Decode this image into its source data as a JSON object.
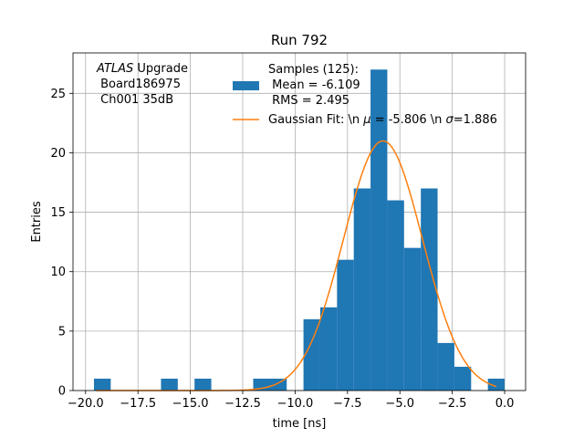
{
  "chart_data": {
    "type": "bar",
    "title": "Run 792",
    "xlabel": "time [ns]",
    "ylabel": "Entries",
    "xlim": [
      -20.6,
      1.0
    ],
    "ylim": [
      0,
      28.4
    ],
    "grid": true,
    "xticks": [
      -20.0,
      -17.5,
      -15.0,
      -12.5,
      -10.0,
      -7.5,
      -5.0,
      -2.5,
      0.0
    ],
    "xtick_labels": [
      "−20.0",
      "−17.5",
      "−15.0",
      "−12.5",
      "−10.0",
      "−7.5",
      "−5.0",
      "−2.5",
      "0.0"
    ],
    "yticks": [
      0,
      5,
      10,
      15,
      20,
      25
    ],
    "ytick_labels": [
      "0",
      "5",
      "10",
      "15",
      "20",
      "25"
    ],
    "annotation": {
      "italic": "ATLAS",
      "rest": " Upgrade",
      "line2": " Board186975",
      "line3": " Ch001 35dB"
    },
    "histogram": {
      "name": "Samples (125):",
      "name_line2": " Mean = -6.109",
      "name_line3": " RMS = 2.495",
      "color": "#1f77b4",
      "bins": [
        {
          "x0": -19.6,
          "x1": -18.8,
          "count": 1
        },
        {
          "x0": -16.4,
          "x1": -15.6,
          "count": 1
        },
        {
          "x0": -14.8,
          "x1": -14.0,
          "count": 1
        },
        {
          "x0": -12.0,
          "x1": -10.4,
          "count": 1
        },
        {
          "x0": -9.6,
          "x1": -8.8,
          "count": 6
        },
        {
          "x0": -8.8,
          "x1": -8.0,
          "count": 7
        },
        {
          "x0": -8.0,
          "x1": -7.2,
          "count": 11
        },
        {
          "x0": -7.2,
          "x1": -6.4,
          "count": 17
        },
        {
          "x0": -6.4,
          "x1": -5.6,
          "count": 27
        },
        {
          "x0": -5.6,
          "x1": -4.8,
          "count": 16
        },
        {
          "x0": -4.8,
          "x1": -4.0,
          "count": 12
        },
        {
          "x0": -4.0,
          "x1": -3.2,
          "count": 17
        },
        {
          "x0": -3.2,
          "x1": -2.4,
          "count": 4
        },
        {
          "x0": -2.4,
          "x1": -1.6,
          "count": 2
        },
        {
          "x0": -0.8,
          "x1": 0.0,
          "count": 1
        }
      ]
    },
    "fit": {
      "name_before": "Gaussian Fit: \\n ",
      "mu_symbol": "μ",
      "name_middle": " = -5.806 \\n ",
      "sigma_symbol": "σ",
      "name_after": "=1.886",
      "color": "#ff7f0e",
      "mu": -5.806,
      "sigma": 1.886,
      "amplitude": 21.0,
      "x_range": [
        -19.5,
        -0.4
      ]
    },
    "legend_position": "top-right"
  }
}
